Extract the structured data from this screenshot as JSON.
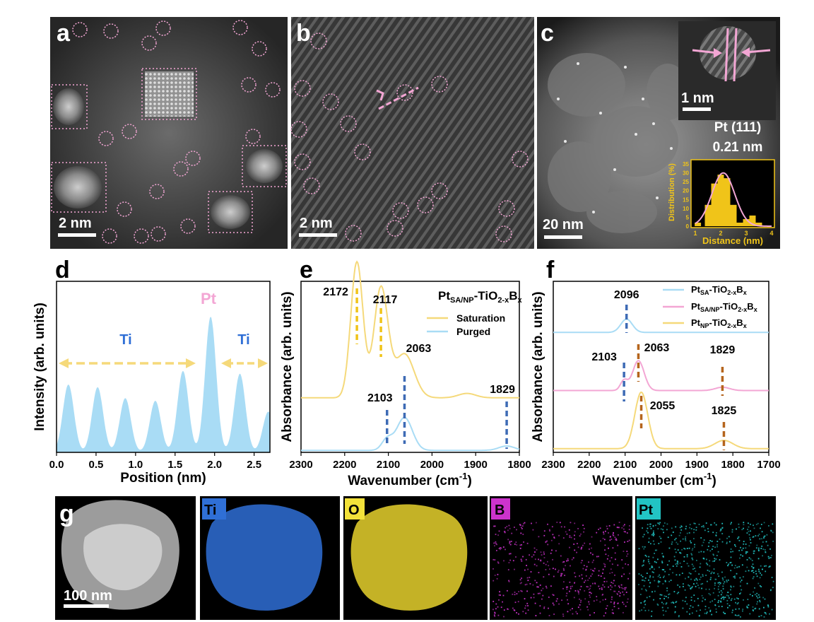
{
  "figure": {
    "panel_labels": [
      "a",
      "b",
      "c",
      "d",
      "e",
      "f",
      "g"
    ],
    "colors": {
      "pink": "#f3a6d4",
      "yellow": "#f5d97a",
      "blue": "#a9dcf5",
      "gold": "#f0c419",
      "dash_blue": "#3e6bb5",
      "dash_orange": "#b5651d",
      "ti": "#2f6fd6",
      "o": "#f2e13a",
      "b": "#cc33cc",
      "pt": "#22c4c4"
    },
    "icons": [
      "arrow-left-icon",
      "arrow-right-icon",
      "double-arrow-icon"
    ]
  },
  "panel_a": {
    "scale_bar": "2 nm"
  },
  "panel_b": {
    "scale_bar": "2 nm"
  },
  "panel_c": {
    "scale_bar": "20 nm",
    "inset_scale_bar": "1 nm",
    "lattice_label_1": "Pt (111)",
    "lattice_label_2": "0.21 nm",
    "histogram": {
      "chart_data": {
        "type": "bar",
        "xlabel": "Distance (nm)",
        "ylabel": "Distribution (%)",
        "xlim": [
          1,
          4
        ],
        "ylim": [
          0,
          35
        ],
        "x_ticks": [
          "1",
          "2",
          "3",
          "4"
        ],
        "y_ticks": [
          "0",
          "5",
          "10",
          "15",
          "20",
          "25",
          "30",
          "35"
        ],
        "x": [
          1.1,
          1.5,
          1.75,
          2.0,
          2.25,
          2.5,
          2.75,
          3.0,
          3.25,
          3.5
        ],
        "values": [
          2,
          12,
          24,
          29,
          27,
          12,
          2,
          4,
          6,
          2
        ],
        "fit": {
          "type": "gaussian",
          "center": 2.1,
          "amplitude": 30,
          "sigma": 0.45
        }
      }
    }
  },
  "panel_d": {
    "chart_data": {
      "type": "area",
      "xlabel": "Position (nm)",
      "ylabel": "Intensity (arb. units)",
      "xlim": [
        0,
        2.7
      ],
      "x_ticks": [
        "0.0",
        "0.5",
        "1.0",
        "1.5",
        "2.0",
        "2.5"
      ],
      "peaks": [
        {
          "x": 0.15,
          "h": 0.5
        },
        {
          "x": 0.52,
          "h": 0.48
        },
        {
          "x": 0.87,
          "h": 0.4
        },
        {
          "x": 1.25,
          "h": 0.38
        },
        {
          "x": 1.6,
          "h": 0.6
        },
        {
          "x": 1.95,
          "h": 1.0
        },
        {
          "x": 2.32,
          "h": 0.58
        },
        {
          "x": 2.68,
          "h": 0.3
        }
      ],
      "annotations": [
        {
          "text": "Pt"
        },
        {
          "text": "Ti"
        },
        {
          "text": "Ti"
        }
      ]
    }
  },
  "panel_e": {
    "chart_data": {
      "type": "line",
      "title_parts": {
        "pt": "Pt",
        "sub": "SA/NP",
        "mid": "-TiO",
        "sub2": "2-x",
        "b": "B",
        "sub3": "x"
      },
      "xlabel": "Wavenumber (cm⁻¹)",
      "xlabel_sup": "-1",
      "ylabel": "Absorbance (arb. units)",
      "xlim": [
        2300,
        1800
      ],
      "x_ticks": [
        "2300",
        "2200",
        "2100",
        "2000",
        "1900",
        "1800"
      ],
      "series": [
        {
          "name": "Saturation",
          "baseline": 0.32,
          "peaks": [
            {
              "x": 2172,
              "h": 0.62,
              "w": 14
            },
            {
              "x": 2117,
              "h": 0.5,
              "w": 16
            },
            {
              "x": 2063,
              "h": 0.2,
              "w": 22
            },
            {
              "x": 1920,
              "h": 0.02,
              "w": 20
            }
          ]
        },
        {
          "name": "Purged",
          "baseline": 0.08,
          "peaks": [
            {
              "x": 2103,
              "h": 0.05,
              "w": 12
            },
            {
              "x": 2063,
              "h": 0.15,
              "w": 18
            },
            {
              "x": 1829,
              "h": 0.02,
              "w": 18
            }
          ]
        }
      ],
      "peak_labels": [
        "2172",
        "2117",
        "2063",
        "2103",
        "1829"
      ]
    }
  },
  "panel_f": {
    "chart_data": {
      "type": "line",
      "xlabel": "Wavenumber (cm⁻¹)",
      "xlabel_sup": "-1",
      "ylabel": "Absorbance (arb. units)",
      "xlim": [
        2300,
        1700
      ],
      "x_ticks": [
        "2300",
        "2200",
        "2100",
        "2000",
        "1900",
        "1800",
        "1700"
      ],
      "series": [
        {
          "name": "Pt_SA-TiO2-xBx",
          "legend": {
            "a": "Pt",
            "s1": "SA",
            "m": "-TiO",
            "s2": "2-x",
            "b": "B",
            "s3": "x"
          },
          "baseline": 0.82,
          "peaks": [
            {
              "x": 2096,
              "h": 0.08,
              "w": 16
            }
          ]
        },
        {
          "name": "Pt_SA/NP-TiO2-xBx",
          "legend": {
            "a": "Pt",
            "s1": "SA/NP",
            "m": "-TiO",
            "s2": "2-x",
            "b": "B",
            "s3": "x"
          },
          "baseline": 0.47,
          "peaks": [
            {
              "x": 2103,
              "h": 0.06,
              "w": 10
            },
            {
              "x": 2063,
              "h": 0.18,
              "w": 16
            },
            {
              "x": 1829,
              "h": 0.02,
              "w": 20
            }
          ]
        },
        {
          "name": "Pt_NP-TiO2-xBx",
          "legend": {
            "a": "Pt",
            "s1": "NP",
            "m": "-TiO",
            "s2": "2-x",
            "b": "B",
            "s3": "x"
          },
          "baseline": 0.12,
          "peaks": [
            {
              "x": 2055,
              "h": 0.34,
              "w": 18
            },
            {
              "x": 1825,
              "h": 0.05,
              "w": 25
            }
          ]
        }
      ],
      "peak_labels": [
        "2096",
        "2103",
        "2063",
        "1829",
        "2055",
        "1825"
      ]
    }
  },
  "panel_g": {
    "scale_bar": "100 nm",
    "maps": [
      {
        "label": "Ti"
      },
      {
        "label": "O"
      },
      {
        "label": "B"
      },
      {
        "label": "Pt"
      }
    ]
  }
}
